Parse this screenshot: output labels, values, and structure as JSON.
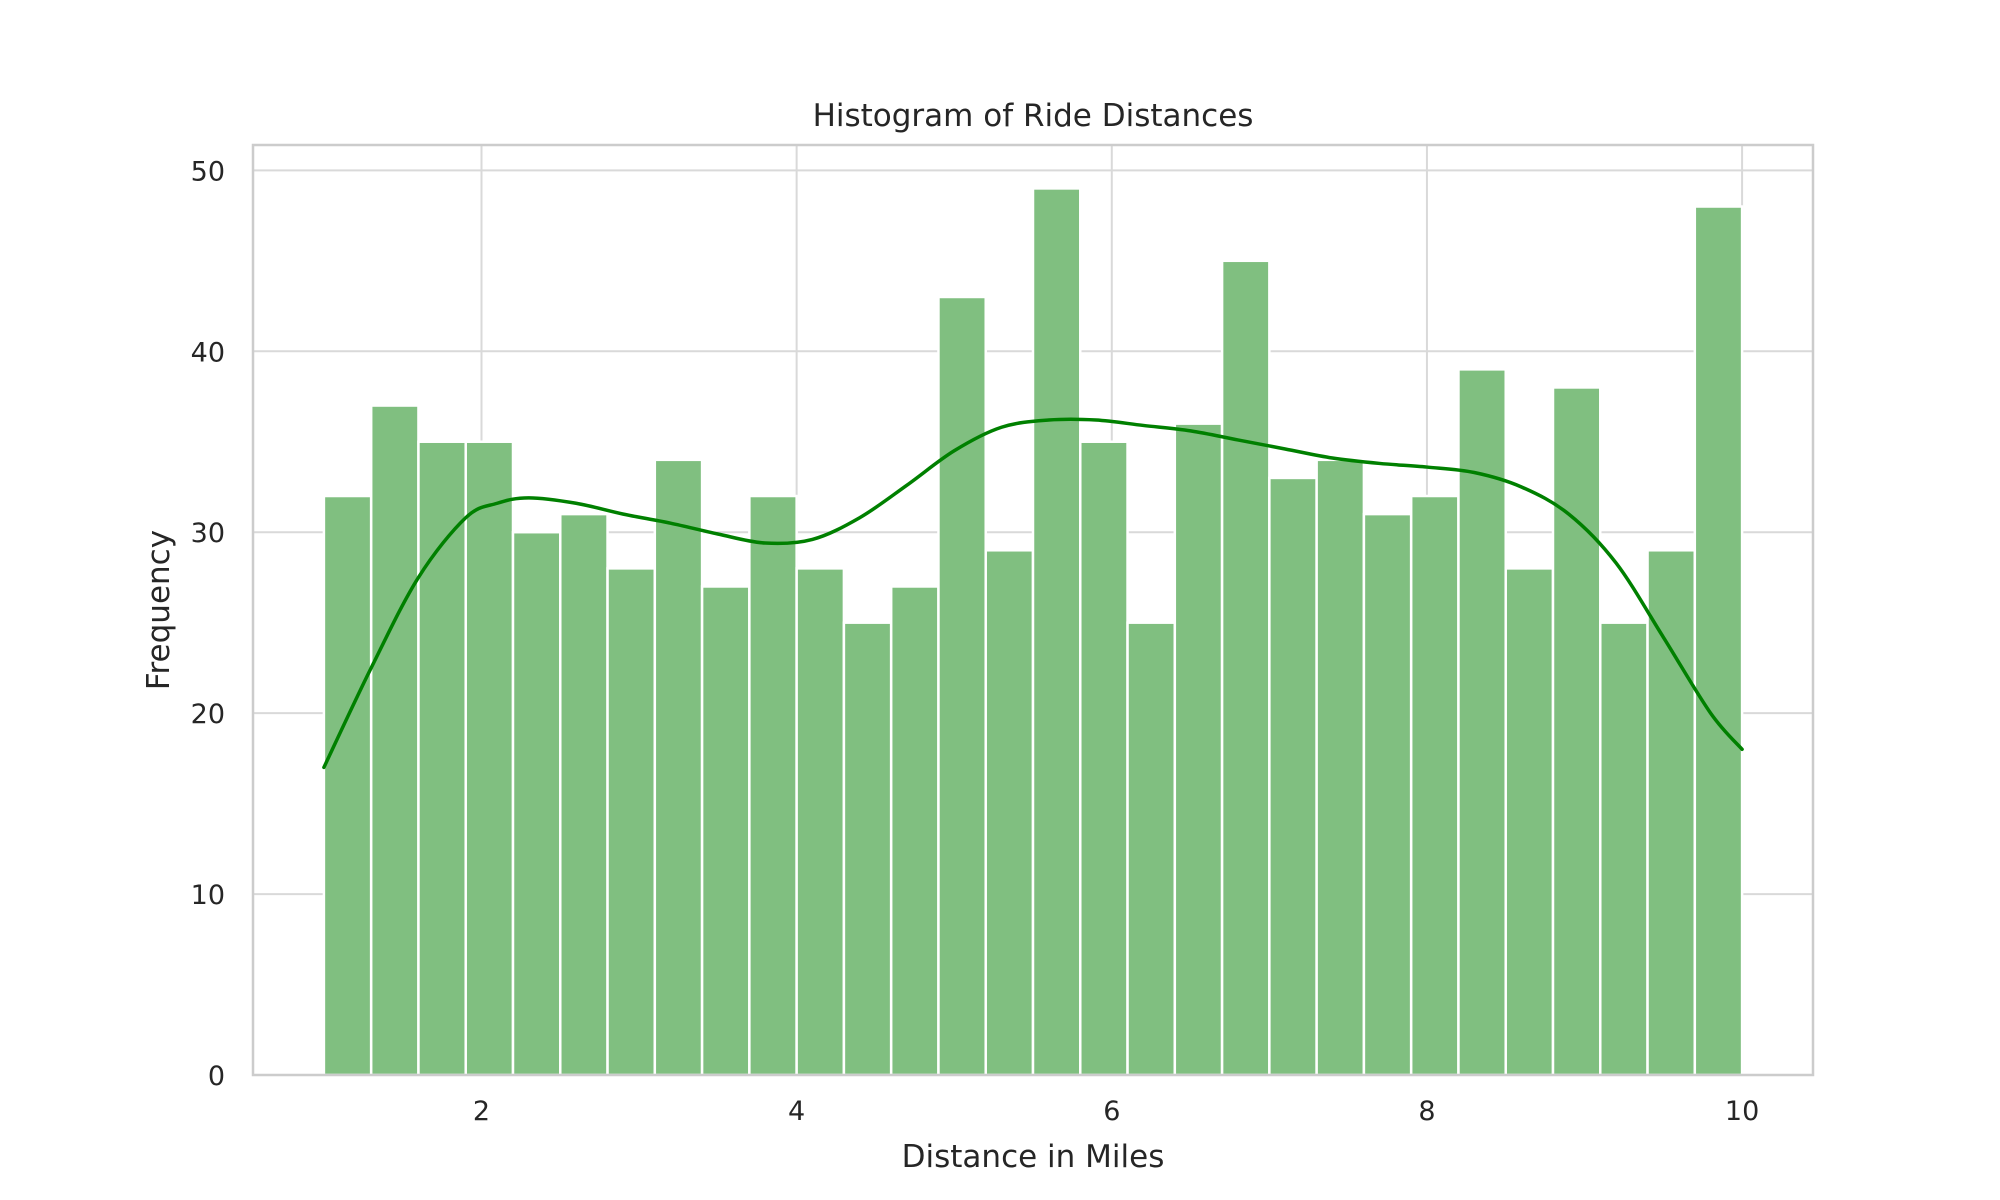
{
  "chart_data": {
    "type": "bar",
    "title": "Histogram of Ride Distances",
    "xlabel": "Distance in Miles",
    "ylabel": "Frequency",
    "xlim": [
      0.55,
      10.45
    ],
    "ylim": [
      0,
      51.4
    ],
    "xticks": [
      2,
      4,
      6,
      8,
      10
    ],
    "yticks": [
      0,
      10,
      20,
      30,
      40,
      50
    ],
    "grid": true,
    "bins": {
      "start": 1.0,
      "end": 10.0,
      "count": 30
    },
    "values": [
      32,
      37,
      35,
      35,
      30,
      31,
      28,
      34,
      27,
      32,
      28,
      25,
      27,
      43,
      29,
      49,
      35,
      25,
      36,
      45,
      33,
      34,
      31,
      32,
      39,
      28,
      38,
      25,
      29,
      48
    ],
    "kde": {
      "x": [
        1.0,
        1.3,
        1.6,
        1.9,
        2.1,
        2.3,
        2.6,
        2.9,
        3.2,
        3.5,
        3.8,
        4.1,
        4.4,
        4.7,
        5.0,
        5.3,
        5.6,
        5.9,
        6.2,
        6.5,
        6.8,
        7.1,
        7.4,
        7.7,
        8.0,
        8.3,
        8.6,
        8.9,
        9.2,
        9.5,
        9.8,
        10.0
      ],
      "y": [
        17.0,
        22.5,
        27.5,
        30.8,
        31.6,
        31.9,
        31.6,
        31.0,
        30.5,
        29.9,
        29.4,
        29.6,
        30.8,
        32.6,
        34.5,
        35.8,
        36.2,
        36.2,
        35.9,
        35.6,
        35.1,
        34.6,
        34.1,
        33.8,
        33.6,
        33.3,
        32.5,
        31.0,
        28.3,
        24.2,
        20.0,
        18.0
      ]
    },
    "colors": {
      "bar": "#80bf80",
      "kde": "#008000"
    }
  }
}
